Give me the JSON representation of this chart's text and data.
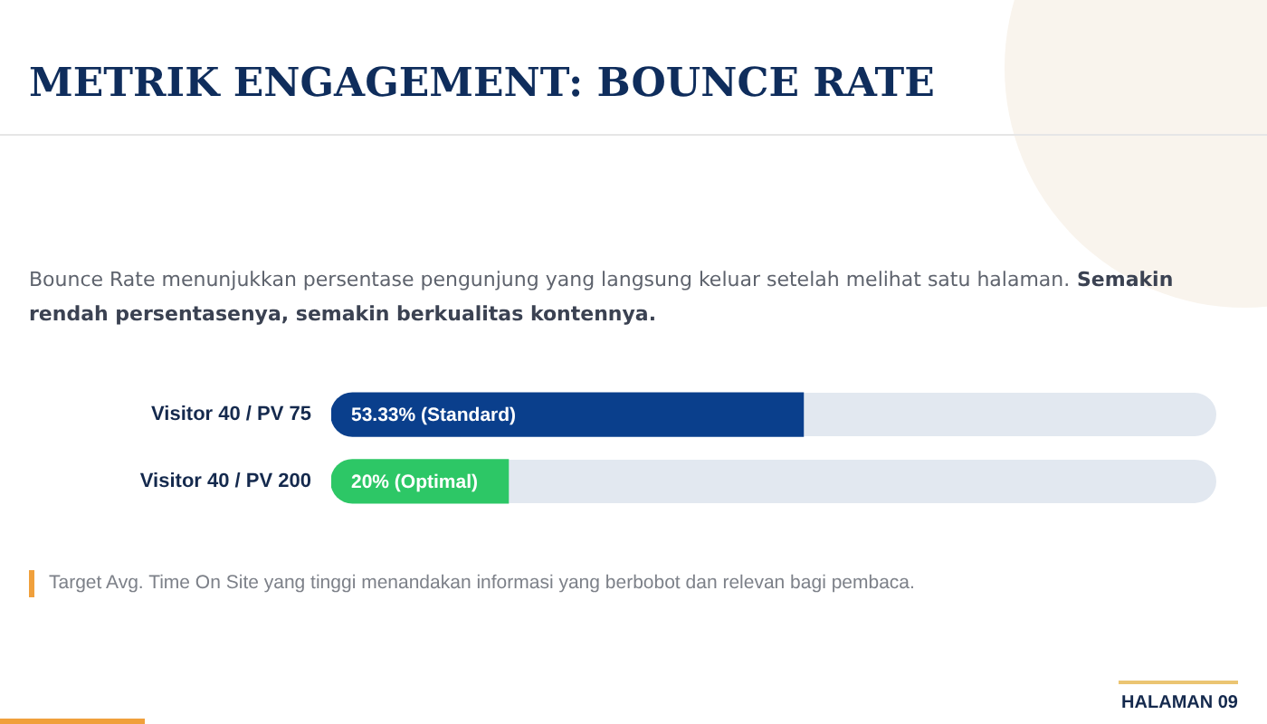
{
  "chart_data": {
    "type": "bar",
    "orientation": "horizontal",
    "title": "METRIK ENGAGEMENT: BOUNCE RATE",
    "subtitle": "Bounce Rate menunjukkan persentase pengunjung yang langsung keluar setelah melihat satu halaman. Semakin rendah persentasenya, semakin berkualitas kontennya.",
    "categories": [
      "Visitor 40 / PV 75",
      "Visitor 40 / PV 200"
    ],
    "values": [
      53.33,
      20
    ],
    "colors": [
      "#0a3f8c",
      "#2dc766"
    ],
    "value_labels": [
      "53.33% (Standard)",
      "20% (Optimal)"
    ],
    "xlim": [
      0,
      100
    ],
    "tick_labels": "y",
    "grid": false,
    "annotations": [
      "Target Avg. Time On Site yang tinggi menandakan informasi yang berbobot dan relevan bagi pembaca.",
      "HALAMAN 09"
    ]
  }
}
